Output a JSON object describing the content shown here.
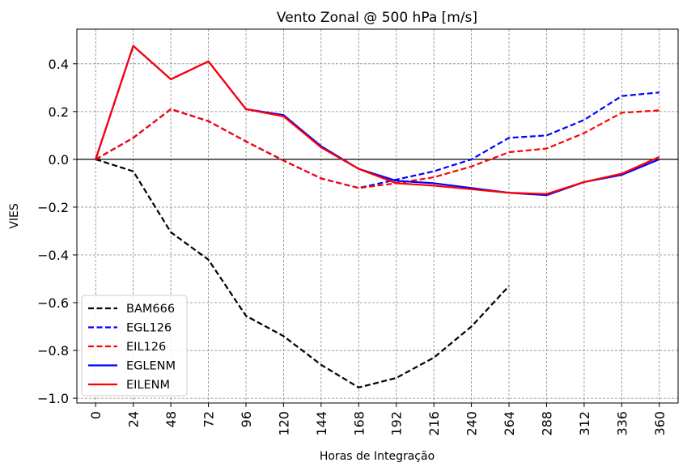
{
  "chart_data": {
    "type": "line",
    "title": "Vento Zonal @ 500 hPa [m/s]",
    "xlabel": "Horas de Integração",
    "ylabel": "VIES",
    "x": [
      0,
      24,
      48,
      72,
      96,
      120,
      144,
      168,
      192,
      216,
      240,
      264,
      288,
      312,
      336,
      360
    ],
    "x_tick_labels": [
      "0",
      "24",
      "48",
      "72",
      "96",
      "120",
      "144",
      "168",
      "192",
      "216",
      "240",
      "264",
      "288",
      "312",
      "336",
      "360"
    ],
    "xlim": [
      -12,
      372
    ],
    "ylim": [
      -1.02,
      0.545
    ],
    "y_ticks": [
      0.4,
      0.2,
      0.0,
      -0.2,
      -0.4,
      -0.6,
      -0.8,
      -1.0
    ],
    "y_tick_labels": [
      "0.4",
      "0.2",
      "0.0",
      "−0.2",
      "−0.4",
      "−0.6",
      "−0.8",
      "−1.0"
    ],
    "grid": true,
    "zero_line": true,
    "legend_position": "lower-left",
    "series": [
      {
        "name": "BAM666",
        "color": "#000000",
        "style": "dashed",
        "values": [
          0.0,
          -0.05,
          -0.305,
          -0.42,
          -0.655,
          -0.74,
          -0.86,
          -0.955,
          -0.915,
          -0.83,
          -0.7,
          -0.53,
          null,
          null,
          null,
          null
        ]
      },
      {
        "name": "EGL126",
        "color": "#0000ff",
        "style": "dashed",
        "values": [
          0.0,
          0.09,
          0.21,
          0.16,
          0.075,
          -0.005,
          -0.08,
          -0.12,
          -0.085,
          -0.05,
          0.0,
          0.09,
          0.1,
          0.165,
          0.265,
          0.28
        ]
      },
      {
        "name": "EIL126",
        "color": "#ff0000",
        "style": "dashed",
        "values": [
          0.0,
          0.09,
          0.21,
          0.16,
          0.075,
          -0.005,
          -0.08,
          -0.12,
          -0.1,
          -0.075,
          -0.03,
          0.03,
          0.045,
          0.11,
          0.195,
          0.205
        ]
      },
      {
        "name": "EGLENM",
        "color": "#0000ff",
        "style": "solid",
        "values": [
          0.0,
          0.475,
          0.335,
          0.41,
          0.21,
          0.185,
          0.055,
          -0.04,
          -0.09,
          -0.1,
          -0.12,
          -0.14,
          -0.15,
          -0.095,
          -0.065,
          0.0
        ]
      },
      {
        "name": "EILENM",
        "color": "#ff0000",
        "style": "solid",
        "values": [
          0.0,
          0.475,
          0.335,
          0.41,
          0.21,
          0.18,
          0.05,
          -0.04,
          -0.1,
          -0.11,
          -0.125,
          -0.14,
          -0.145,
          -0.095,
          -0.06,
          0.01
        ]
      }
    ]
  }
}
